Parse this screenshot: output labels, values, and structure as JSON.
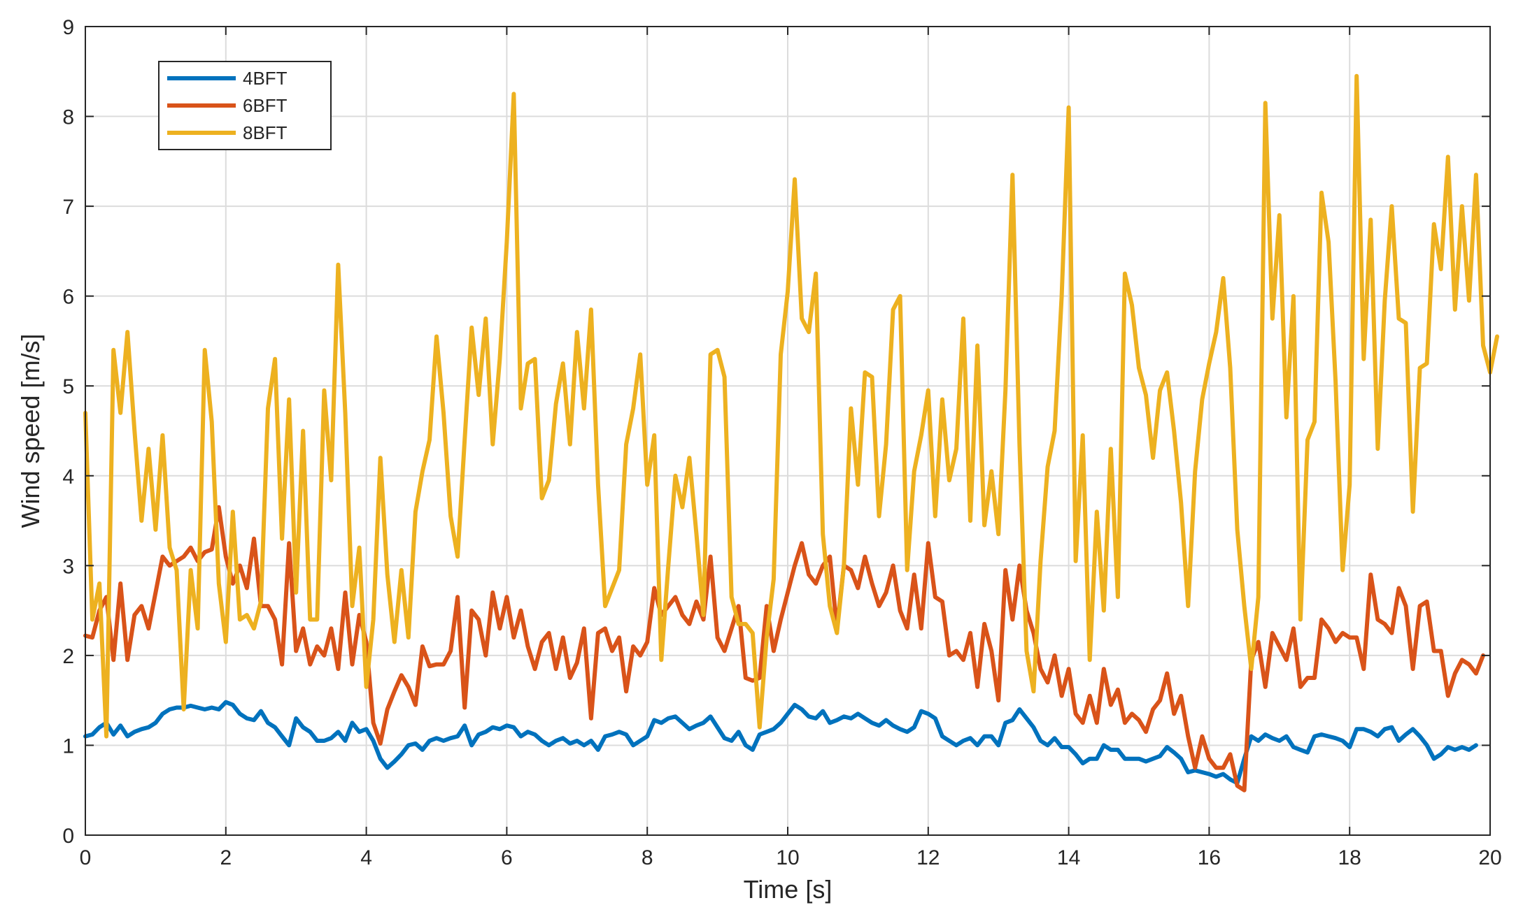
{
  "chart_data": {
    "type": "line",
    "title": "",
    "xlabel": "Time [s]",
    "ylabel": "Wind speed [m/s]",
    "xlim": [
      0,
      20
    ],
    "ylim": [
      0,
      9
    ],
    "xticks": [
      0,
      2,
      4,
      6,
      8,
      10,
      12,
      14,
      16,
      18,
      20
    ],
    "yticks": [
      0,
      1,
      2,
      3,
      4,
      5,
      6,
      7,
      8,
      9
    ],
    "grid": true,
    "legend_position": "top-left",
    "x_step": 0.1,
    "series": [
      {
        "name": "4BFT",
        "color": "#0072BD",
        "values": [
          1.1,
          1.12,
          1.2,
          1.25,
          1.12,
          1.22,
          1.1,
          1.15,
          1.18,
          1.2,
          1.25,
          1.35,
          1.4,
          1.42,
          1.42,
          1.44,
          1.42,
          1.4,
          1.42,
          1.4,
          1.48,
          1.45,
          1.35,
          1.3,
          1.28,
          1.38,
          1.25,
          1.2,
          1.1,
          1.0,
          1.3,
          1.2,
          1.15,
          1.05,
          1.05,
          1.08,
          1.15,
          1.05,
          1.25,
          1.15,
          1.18,
          1.05,
          0.85,
          0.75,
          0.82,
          0.9,
          1.0,
          1.02,
          0.95,
          1.05,
          1.08,
          1.05,
          1.08,
          1.1,
          1.22,
          1.0,
          1.12,
          1.15,
          1.2,
          1.18,
          1.22,
          1.2,
          1.1,
          1.15,
          1.12,
          1.05,
          1.0,
          1.05,
          1.08,
          1.02,
          1.05,
          1.0,
          1.05,
          0.95,
          1.1,
          1.12,
          1.15,
          1.12,
          1.0,
          1.05,
          1.1,
          1.28,
          1.25,
          1.3,
          1.32,
          1.25,
          1.18,
          1.22,
          1.25,
          1.32,
          1.2,
          1.08,
          1.05,
          1.15,
          1.0,
          0.95,
          1.12,
          1.15,
          1.18,
          1.25,
          1.35,
          1.45,
          1.4,
          1.32,
          1.3,
          1.38,
          1.25,
          1.28,
          1.32,
          1.3,
          1.35,
          1.3,
          1.25,
          1.22,
          1.28,
          1.22,
          1.18,
          1.15,
          1.2,
          1.38,
          1.35,
          1.3,
          1.1,
          1.05,
          1.0,
          1.05,
          1.08,
          1.0,
          1.1,
          1.1,
          1.0,
          1.25,
          1.28,
          1.4,
          1.3,
          1.2,
          1.05,
          1.0,
          1.08,
          0.98,
          0.98,
          0.9,
          0.8,
          0.85,
          0.85,
          1.0,
          0.95,
          0.95,
          0.85,
          0.85,
          0.85,
          0.82,
          0.85,
          0.88,
          0.98,
          0.92,
          0.85,
          0.7,
          0.72,
          0.7,
          0.68,
          0.65,
          0.68,
          0.62,
          0.58,
          0.85,
          1.1,
          1.05,
          1.12,
          1.08,
          1.05,
          1.1,
          0.98,
          0.95,
          0.92,
          1.1,
          1.12,
          1.1,
          1.08,
          1.05,
          0.98,
          1.18,
          1.18,
          1.15,
          1.1,
          1.18,
          1.2,
          1.05,
          1.12,
          1.18,
          1.1,
          1.0,
          0.85,
          0.9,
          0.98,
          0.95,
          0.98,
          0.95,
          1.0
        ]
      },
      {
        "name": "6BFT",
        "color": "#D95319",
        "values": [
          2.22,
          2.2,
          2.5,
          2.65,
          1.95,
          2.8,
          1.95,
          2.45,
          2.55,
          2.3,
          2.7,
          3.1,
          3.0,
          3.05,
          3.1,
          3.2,
          3.05,
          3.15,
          3.18,
          3.65,
          3.1,
          2.8,
          3.0,
          2.75,
          3.3,
          2.55,
          2.55,
          2.4,
          1.9,
          3.25,
          2.05,
          2.3,
          1.9,
          2.1,
          2.0,
          2.3,
          1.85,
          2.7,
          1.9,
          2.45,
          2.15,
          1.25,
          1.02,
          1.4,
          1.6,
          1.78,
          1.65,
          1.45,
          2.1,
          1.88,
          1.9,
          1.9,
          2.05,
          2.65,
          1.42,
          2.5,
          2.4,
          2.0,
          2.7,
          2.3,
          2.65,
          2.2,
          2.5,
          2.1,
          1.85,
          2.15,
          2.25,
          1.85,
          2.2,
          1.75,
          1.92,
          2.3,
          1.3,
          2.25,
          2.3,
          2.05,
          2.2,
          1.6,
          2.1,
          2.0,
          2.15,
          2.75,
          2.45,
          2.55,
          2.65,
          2.45,
          2.35,
          2.6,
          2.4,
          3.1,
          2.2,
          2.05,
          2.3,
          2.55,
          1.75,
          1.72,
          1.75,
          2.55,
          2.05,
          2.4,
          2.7,
          3.0,
          3.25,
          2.9,
          2.8,
          3.0,
          3.1,
          2.3,
          3.0,
          2.95,
          2.75,
          3.1,
          2.8,
          2.55,
          2.7,
          3.0,
          2.5,
          2.3,
          2.9,
          2.3,
          3.25,
          2.65,
          2.6,
          2.0,
          2.05,
          1.95,
          2.25,
          1.65,
          2.35,
          2.05,
          1.5,
          2.95,
          2.4,
          3.0,
          2.5,
          2.25,
          1.85,
          1.7,
          2.0,
          1.55,
          1.85,
          1.35,
          1.25,
          1.55,
          1.25,
          1.85,
          1.45,
          1.62,
          1.25,
          1.35,
          1.28,
          1.15,
          1.4,
          1.5,
          1.8,
          1.35,
          1.55,
          1.1,
          0.75,
          1.1,
          0.85,
          0.75,
          0.75,
          0.9,
          0.55,
          0.5,
          1.95,
          2.15,
          1.65,
          2.25,
          2.1,
          1.95,
          2.3,
          1.65,
          1.75,
          1.75,
          2.4,
          2.3,
          2.15,
          2.25,
          2.2,
          2.2,
          1.85,
          2.9,
          2.4,
          2.35,
          2.25,
          2.75,
          2.55,
          1.85,
          2.55,
          2.6,
          2.05,
          2.05,
          1.55,
          1.8,
          1.95,
          1.9,
          1.8,
          2.0
        ]
      },
      {
        "name": "8BFT",
        "color": "#EDB120",
        "values": [
          4.7,
          2.4,
          2.8,
          1.1,
          5.4,
          4.7,
          5.6,
          4.5,
          3.5,
          4.3,
          3.4,
          4.45,
          3.2,
          2.95,
          1.4,
          2.95,
          2.3,
          5.4,
          4.6,
          2.8,
          2.15,
          3.6,
          2.4,
          2.45,
          2.3,
          2.6,
          4.75,
          5.3,
          3.3,
          4.85,
          2.7,
          4.5,
          2.4,
          2.4,
          4.95,
          3.95,
          6.35,
          4.7,
          2.55,
          3.2,
          1.65,
          2.4,
          4.2,
          2.9,
          2.15,
          2.95,
          2.2,
          3.6,
          4.05,
          4.4,
          5.55,
          4.7,
          3.55,
          3.1,
          4.4,
          5.65,
          4.9,
          5.75,
          4.35,
          5.3,
          6.6,
          8.25,
          4.75,
          5.25,
          5.3,
          3.75,
          3.95,
          4.8,
          5.25,
          4.35,
          5.6,
          4.75,
          5.85,
          3.9,
          2.55,
          2.75,
          2.95,
          4.35,
          4.75,
          5.35,
          3.9,
          4.45,
          1.95,
          3.0,
          4.0,
          3.65,
          4.2,
          3.35,
          2.45,
          5.35,
          5.4,
          5.1,
          2.65,
          2.35,
          2.35,
          2.25,
          1.2,
          2.2,
          2.85,
          5.35,
          6.05,
          7.3,
          5.75,
          5.6,
          6.25,
          3.35,
          2.55,
          2.25,
          3.0,
          4.75,
          3.9,
          5.15,
          5.1,
          3.55,
          4.35,
          5.85,
          6.0,
          2.95,
          4.05,
          4.45,
          4.95,
          3.55,
          4.85,
          3.95,
          4.3,
          5.75,
          3.5,
          5.45,
          3.45,
          4.05,
          3.35,
          4.95,
          7.35,
          4.35,
          2.05,
          1.6,
          3.05,
          4.1,
          4.5,
          6.0,
          8.1,
          3.05,
          4.45,
          1.95,
          3.6,
          2.5,
          4.3,
          2.65,
          6.25,
          5.9,
          5.2,
          4.9,
          4.2,
          4.95,
          5.15,
          4.5,
          3.7,
          2.55,
          4.05,
          4.85,
          5.25,
          5.6,
          6.2,
          5.2,
          3.4,
          2.55,
          1.85,
          2.65,
          8.15,
          5.75,
          6.9,
          4.65,
          6.0,
          2.4,
          4.4,
          4.6,
          7.15,
          6.6,
          5.05,
          2.95,
          3.9,
          8.45,
          5.3,
          6.85,
          4.3,
          5.95,
          7.0,
          5.75,
          5.7,
          3.6,
          5.2,
          5.25,
          6.8,
          6.3,
          7.55,
          5.85,
          7.0,
          5.95,
          7.35,
          5.45,
          5.15,
          5.55
        ]
      }
    ]
  }
}
